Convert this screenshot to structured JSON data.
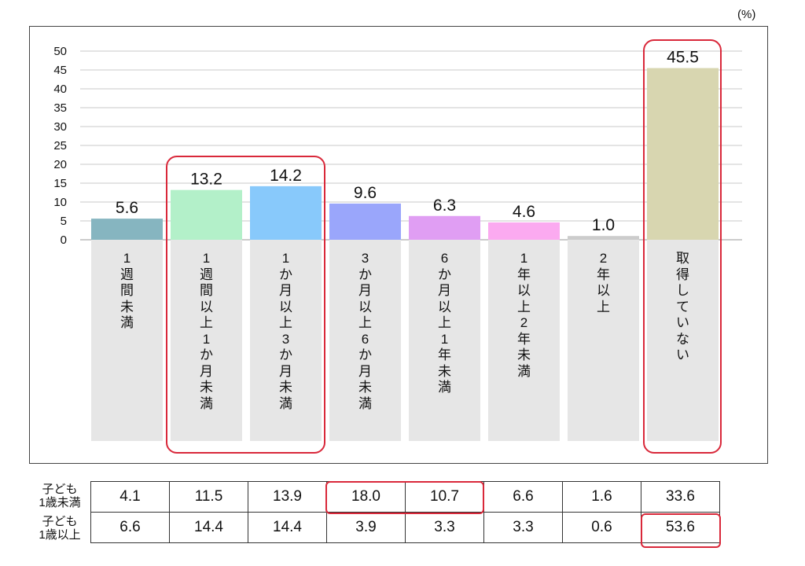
{
  "unit_label": "(%)",
  "chart_data": {
    "type": "bar",
    "categories": [
      "1週間未満",
      "1週間以上1か月未満",
      "1か月以上3か月未満",
      "3か月以上6か月未満",
      "6か月以上1年未満",
      "1年以上2年未満",
      "2年以上",
      "取得していない"
    ],
    "values": [
      5.6,
      13.2,
      14.2,
      9.6,
      6.3,
      4.6,
      1.0,
      45.5
    ],
    "value_labels": [
      "5.6",
      "13.2",
      "14.2",
      "9.6",
      "6.3",
      "4.6",
      "1.0",
      "45.5"
    ],
    "colors": [
      "#86b5c0",
      "#b3f0c9",
      "#88c9fb",
      "#9aa6fb",
      "#e09ef3",
      "#fbaaf0",
      "#cccccc",
      "#d8d6b0"
    ],
    "yticks": [
      "0",
      "5",
      "10",
      "15",
      "20",
      "25",
      "30",
      "35",
      "40",
      "45",
      "50"
    ],
    "ylim": [
      0,
      50
    ],
    "grid": true,
    "unit": "(%)",
    "highlight_color": "#d9283a"
  },
  "table": {
    "row_labels": [
      [
        "子ども",
        "1歳未満"
      ],
      [
        "子ども",
        "1歳以上"
      ]
    ],
    "rows": [
      [
        "4.1",
        "11.5",
        "13.9",
        "18.0",
        "10.7",
        "6.6",
        "1.6",
        "33.6"
      ],
      [
        "6.6",
        "14.4",
        "14.4",
        "3.9",
        "3.3",
        "3.3",
        "0.6",
        "53.6"
      ]
    ]
  }
}
